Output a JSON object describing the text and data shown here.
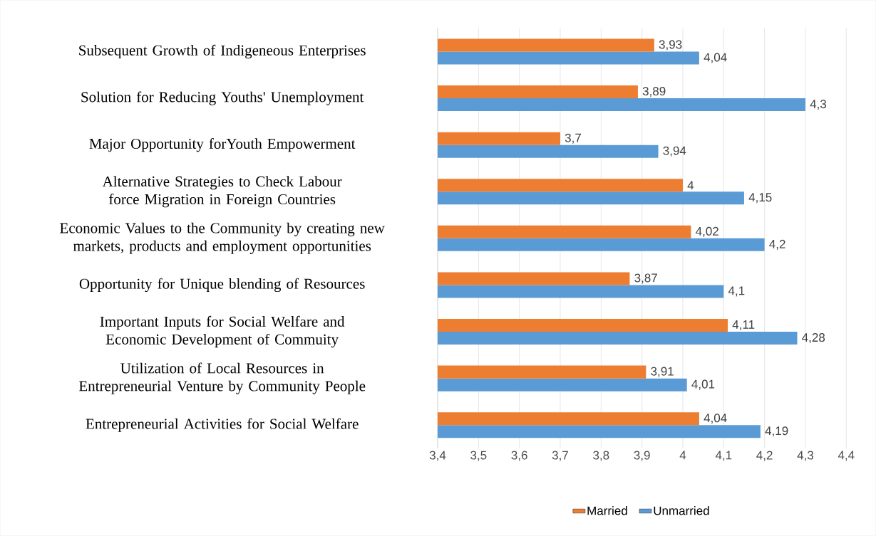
{
  "chart_data": {
    "type": "bar",
    "orientation": "horizontal",
    "categories": [
      "Subsequent Growth of Indigeneous Enterprises",
      "Solution for Reducing Youths' Unemployment",
      "Major Opportunity forYouth Empowerment",
      "Alternative Strategies to Check Labour force Migration in Foreign Countries",
      "Economic Values to the Community by creating new markets, products and employment opportunities",
      "Opportunity for Unique blending of Resources",
      "Important Inputs for Social Welfare and Economic Development of Commuity",
      "Utilization of Local Resources in Entrepreneurial Venture by Community People",
      "Entrepreneurial Activities for Social Welfare"
    ],
    "series": [
      {
        "name": "Married",
        "color": "#ed7d31",
        "values": [
          3.93,
          3.89,
          3.7,
          4,
          4.02,
          3.87,
          4.11,
          3.91,
          4.04
        ],
        "value_labels": [
          "3,93",
          "3,89",
          "3,7",
          "4",
          "4,02",
          "3,87",
          "4,11",
          "3,91",
          "4,04"
        ]
      },
      {
        "name": "Unmarried",
        "color": "#5b9bd5",
        "values": [
          4.04,
          4.3,
          3.94,
          4.15,
          4.2,
          4.1,
          4.28,
          4.01,
          4.19
        ],
        "value_labels": [
          "4,04",
          "4,3",
          "3,94",
          "4,15",
          "4,2",
          "4,1",
          "4,28",
          "4,01",
          "4,19"
        ]
      }
    ],
    "xlim": [
      3.4,
      4.4
    ],
    "xticks": [
      {
        "value": 3.4,
        "label": "3,4"
      },
      {
        "value": 3.5,
        "label": "3,5"
      },
      {
        "value": 3.6,
        "label": "3,6"
      },
      {
        "value": 3.7,
        "label": "3,7"
      },
      {
        "value": 3.8,
        "label": "3,8"
      },
      {
        "value": 3.9,
        "label": "3,9"
      },
      {
        "value": 4.0,
        "label": "4"
      },
      {
        "value": 4.1,
        "label": "4,1"
      },
      {
        "value": 4.2,
        "label": "4,2"
      },
      {
        "value": 4.3,
        "label": "4,3"
      },
      {
        "value": 4.4,
        "label": "4,4"
      }
    ],
    "grid": "x",
    "legend": "bottom"
  }
}
